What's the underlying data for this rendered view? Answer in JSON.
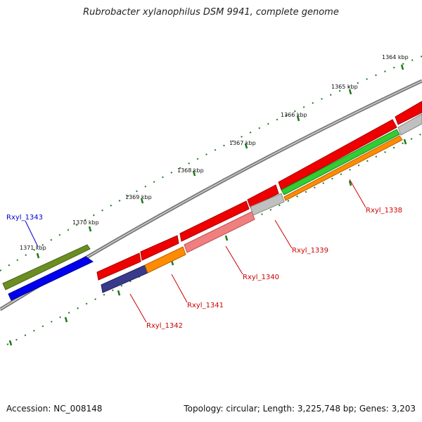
{
  "title": "Rubrobacter xylanophilus DSM 9941, complete genome",
  "footer": {
    "accession": "Accession: NC_008148",
    "topology": "Topology: circular; Length: 3,225,748 bp; Genes: 3,203"
  },
  "scale_ticks": [
    "1364 kbp",
    "1365 kbp",
    "1366 kbp",
    "1367 kbp",
    "1368 kbp",
    "1369 kbp",
    "1370 kbp",
    "1371 kbp"
  ],
  "gene_labels": [
    {
      "text": "Rxyl_1343",
      "color": "#0000cc"
    },
    {
      "text": "Rxyl_1342",
      "color": "#cc0000"
    },
    {
      "text": "Rxyl_1341",
      "color": "#cc0000"
    },
    {
      "text": "Rxyl_1340",
      "color": "#cc0000"
    },
    {
      "text": "Rxyl_1339",
      "color": "#cc0000"
    },
    {
      "text": "Rxyl_1338",
      "color": "#cc0000"
    }
  ],
  "colors": {
    "backbone": "#888888",
    "tick": "#1a7a1a",
    "red": "#ee0000",
    "olive": "#6b8e23",
    "blue": "#0000ee",
    "navy": "#3a3a8c",
    "orange": "#ff8c00",
    "pink": "#f08080",
    "grey": "#c0c0c0",
    "green": "#33cc33"
  }
}
